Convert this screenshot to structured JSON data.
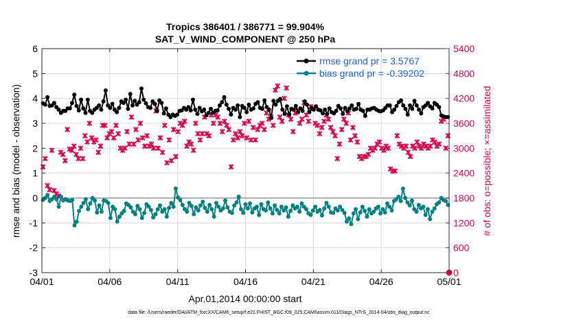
{
  "chart_data": {
    "type": "line",
    "title_line1": "Tropics 386401 / 386771 = 99.904%",
    "title_line2": "SAT_V_WIND_COMPONENT @ 250 hPa",
    "xlabel": "Apr.01,2014 00:00:00 start",
    "ylabel_left": "rmse and bias (model - observation)",
    "ylabel_right": "# of obs: o=possible; ×=assimilated",
    "footnote": "data file: /Users/raeder/DAI/ATM_forcXX/CAM6_setup/f.e21.FHIST_BGC.f09_025.CAM6assim.011/Diags_NTrS_2014-04/obs_diag_output.nc",
    "x_ticks": [
      1,
      6,
      11,
      16,
      21,
      26,
      31
    ],
    "x_tick_labels": [
      "04/01",
      "04/06",
      "04/11",
      "04/16",
      "04/21",
      "04/26",
      "05/01"
    ],
    "x_range": [
      1,
      31
    ],
    "y_left_range": [
      -3,
      6
    ],
    "y_left_ticks": [
      -3,
      -2,
      -1,
      0,
      1,
      2,
      3,
      4,
      5,
      6
    ],
    "y_left_tick_labels": [
      "-3",
      "-2",
      "-1",
      "0",
      "1",
      "2",
      "3",
      "4",
      "5",
      "6"
    ],
    "y_right_range": [
      0,
      5400
    ],
    "y_right_ticks": [
      0,
      600,
      1200,
      1800,
      2400,
      3000,
      3600,
      4200,
      4800,
      5400
    ],
    "y_right_tick_labels": [
      "0",
      "600",
      "1200",
      "1800",
      "2400",
      "3000",
      "3600",
      "4200",
      "4800",
      "5400"
    ],
    "zero_line": 0,
    "colors": {
      "rmse": "#000000",
      "bias": "#008080",
      "obs": "#d6004f",
      "legend_text": "#1f5fd6",
      "zero_line": "#b0b0b0"
    },
    "series": [
      {
        "name": "rmse grand pr = 3.5767",
        "axis": "left",
        "style": "line-dot",
        "values": [
          3.8,
          3.75,
          4.05,
          3.7,
          3.72,
          3.82,
          3.65,
          3.55,
          3.42,
          3.5,
          3.5,
          3.6,
          3.6,
          3.82,
          4.15,
          3.7,
          3.52,
          3.95,
          3.6,
          3.42,
          3.95,
          3.5,
          3.42,
          3.55,
          3.62,
          3.72,
          3.55,
          3.88,
          4.32,
          3.72,
          3.62,
          3.78,
          3.55,
          3.45,
          3.62,
          3.88,
          3.82,
          3.95,
          3.58,
          4.18,
          3.72,
          3.9,
          3.75,
          3.85,
          4.4,
          3.95,
          3.8,
          3.65,
          3.62,
          3.88,
          3.78,
          3.5,
          3.92,
          3.82,
          3.4,
          3.6,
          3.35,
          3.25,
          3.35,
          3.3,
          3.35,
          3.5,
          3.52,
          3.62,
          3.55,
          3.65,
          3.52,
          3.95,
          3.55,
          3.38,
          3.62,
          3.48,
          3.55,
          3.32,
          3.42,
          3.58,
          3.42,
          3.5,
          3.52,
          3.72,
          3.85,
          4.05,
          3.75,
          3.58,
          3.35,
          3.62,
          3.55,
          3.72,
          3.25,
          3.7,
          3.62,
          3.45,
          3.75,
          3.55,
          3.6,
          3.78,
          3.85,
          3.62,
          3.58,
          3.92,
          3.65,
          3.55,
          3.22,
          3.9,
          3.75,
          3.9,
          3.98,
          3.55,
          3.38,
          3.68,
          3.35,
          3.58,
          3.55,
          3.7,
          3.45,
          3.6,
          3.5,
          3.88,
          3.75,
          3.45,
          3.62,
          3.55,
          3.68,
          3.55,
          3.52,
          3.4,
          3.55,
          3.38,
          3.6,
          3.45,
          3.4,
          3.5,
          3.7,
          3.6,
          3.38,
          3.62,
          3.48,
          3.6,
          3.72,
          3.55,
          3.58,
          3.78,
          3.55,
          3.5,
          3.3,
          3.55,
          3.55,
          3.6,
          3.62,
          3.55,
          3.5,
          3.48,
          3.52,
          3.62,
          3.72,
          3.72,
          3.45,
          3.55,
          3.7,
          3.85,
          3.92,
          3.72,
          3.58,
          3.35,
          3.72,
          3.58,
          3.9,
          3.72,
          3.55,
          3.4,
          3.65,
          3.72,
          3.82,
          3.68,
          3.6,
          3.82,
          3.75,
          3.65,
          3.32,
          3.28,
          3.25,
          3.25
        ]
      },
      {
        "name": "bias grand pr = -0.39202",
        "axis": "left",
        "style": "line-dot",
        "values": [
          -0.08,
          0.0,
          0.12,
          -0.12,
          -0.05,
          0.05,
          -0.05,
          -0.35,
          0.05,
          -0.1,
          -0.05,
          -0.1,
          -0.12,
          -0.08,
          -1.1,
          -0.95,
          -0.52,
          -0.35,
          -0.2,
          -0.05,
          -0.45,
          -0.22,
          0.0,
          -0.1,
          -0.58,
          -0.3,
          -0.55,
          -0.1,
          -0.12,
          -0.2,
          -0.8,
          -0.35,
          -0.45,
          -0.95,
          -0.75,
          -0.62,
          -0.52,
          -0.22,
          -0.28,
          -0.38,
          -0.55,
          -0.65,
          -0.32,
          -0.45,
          -0.8,
          -0.6,
          -0.25,
          -0.35,
          -0.48,
          -0.78,
          -0.65,
          -0.45,
          -0.3,
          -0.55,
          -0.45,
          -0.75,
          -0.4,
          -0.2,
          -0.35,
          0.38,
          0.02,
          -0.08,
          -0.28,
          -0.45,
          -0.55,
          -0.2,
          -0.32,
          -0.65,
          -0.38,
          -0.5,
          -0.3,
          -0.15,
          -0.4,
          -0.55,
          -0.28,
          -0.45,
          -0.75,
          -0.2,
          -0.35,
          -0.5,
          -0.42,
          -0.1,
          -0.38,
          -0.55,
          -0.6,
          -0.3,
          -0.18,
          0.05,
          -0.45,
          -0.6,
          -0.25,
          -0.42,
          -0.22,
          -0.58,
          -0.42,
          -0.35,
          -0.68,
          -0.25,
          -0.45,
          -0.5,
          -0.18,
          -0.42,
          -0.62,
          -0.3,
          -0.48,
          -0.62,
          -0.35,
          -0.5,
          -0.38,
          -0.75,
          -0.52,
          -0.3,
          -0.42,
          -0.35,
          -0.55,
          -0.22,
          -0.35,
          -0.45,
          -0.62,
          -0.68,
          -0.5,
          -0.35,
          -0.55,
          -0.48,
          -0.7,
          -0.42,
          -0.2,
          -0.35,
          -0.58,
          -0.6,
          -0.42,
          -0.5,
          -0.35,
          -0.48,
          -0.6,
          -0.95,
          -0.82,
          -1.05,
          -0.62,
          -0.45,
          -0.85,
          -0.58,
          -0.35,
          -0.52,
          -0.75,
          -0.45,
          -0.62,
          -0.55,
          -0.42,
          -0.35,
          -0.62,
          -0.45,
          -0.58,
          -0.22,
          -0.35,
          -0.5,
          -0.12,
          -0.05,
          0.05,
          -0.12,
          0.38,
          0.0,
          -0.18,
          -0.3,
          -0.1,
          -0.45,
          -0.55,
          -0.28,
          -0.42,
          -0.35,
          -0.68,
          -0.45,
          -0.85,
          -0.55,
          -0.42,
          -0.25,
          -0.18,
          0.0,
          -0.08,
          -0.12,
          -0.28
        ]
      },
      {
        "name": "# of obs assimilated",
        "axis": "right",
        "style": "marker-x",
        "values": [
          2550,
          2750,
          2100,
          2000,
          2950,
          1980,
          1900,
          1850,
          2900,
          2850,
          2700,
          3450,
          2980,
          2950,
          3050,
          2850,
          2750,
          3000,
          2750,
          3300,
          3150,
          3600,
          3250,
          3150,
          3200,
          2900,
          3050,
          3550,
          3550,
          3250,
          3350,
          3400,
          3250,
          3550,
          3350,
          3000,
          2950,
          3000,
          3400,
          3100,
          3750,
          3100,
          3450,
          3200,
          3600,
          3250,
          3050,
          3300,
          3050,
          3100,
          3000,
          3900,
          3000,
          3250,
          2900,
          3550,
          2650,
          3200,
          2700,
          3450,
          2800,
          3400,
          3600,
          3550,
          3650,
          3050,
          3150,
          3100,
          2950,
          3600,
          3350,
          3200,
          3350,
          3750,
          3350,
          3300,
          3800,
          3600,
          3800,
          3750,
          3600,
          3400,
          3650,
          3550,
          3450,
          2550,
          3200,
          3350,
          3250,
          3400,
          3300,
          3600,
          3250,
          3650,
          3200,
          3500,
          3200,
          3450,
          3550,
          3600,
          3450,
          3850,
          3700,
          3750,
          3550,
          4400,
          4500,
          3750,
          3650,
          4200,
          4450,
          3800,
          3700,
          3400,
          3850,
          3900,
          3600,
          3700,
          4100,
          3800,
          3650,
          4000,
          3950,
          3600,
          3550,
          3350,
          3500,
          3650,
          3800,
          3700,
          3500,
          3400,
          3300,
          2750,
          3100,
          3450,
          3700,
          3600,
          3850,
          3200,
          3500,
          3300,
          3150,
          2800,
          2750,
          2800,
          2800,
          2850,
          3000,
          2950,
          3000,
          3100,
          3150,
          3000,
          2950,
          3050,
          3000,
          2500,
          2450,
          2450,
          3300,
          3100,
          3050,
          3000,
          3050,
          2900,
          2800,
          3050,
          3000,
          3150,
          3050,
          3000,
          3100,
          3050,
          3000,
          3050,
          3200,
          3150,
          3050,
          3100,
          3650,
          3700,
          3000,
          3300
        ]
      }
    ]
  }
}
